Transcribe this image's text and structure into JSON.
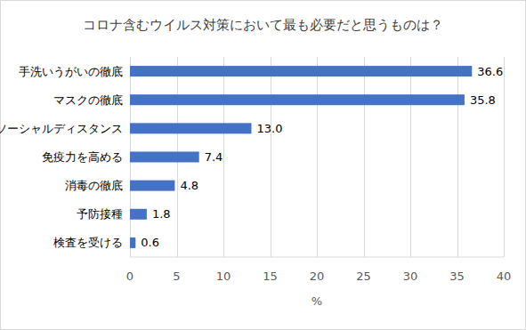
{
  "chart_data": {
    "type": "bar",
    "orientation": "horizontal",
    "title": "コロナ含むウイルス対策において最も必要だと思うものは？",
    "categories": [
      "手洗いうがいの徹底",
      "マスクの徹底",
      "ソーシャルディスタンス",
      "免疫力を高める",
      "消毒の徹底",
      "予防接種",
      "検査を受ける"
    ],
    "values": [
      36.6,
      35.8,
      13.0,
      7.4,
      4.8,
      1.8,
      0.6
    ],
    "value_labels": [
      "36.6",
      "35.8",
      "13.0",
      "7.4",
      "4.8",
      "1.8",
      "0.6"
    ],
    "color": "#4472c4",
    "xlabel": "%",
    "xlim": [
      0,
      40
    ],
    "xticks": [
      0,
      5,
      10,
      15,
      20,
      25,
      30,
      35,
      40
    ],
    "grid": true,
    "data_labels": true
  }
}
